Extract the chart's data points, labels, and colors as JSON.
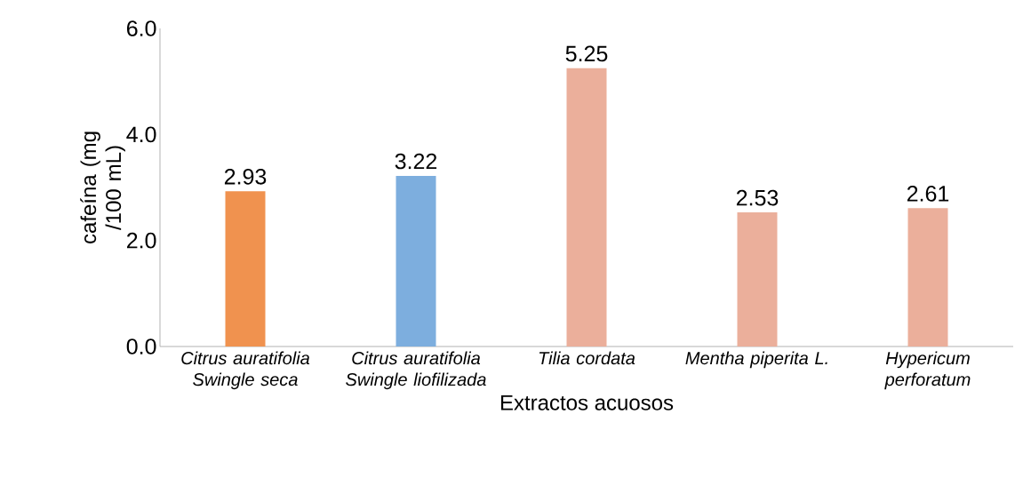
{
  "chart_data": {
    "type": "bar",
    "xlabel": "Extractos acuosos",
    "ylabel": "cafeína (mg /100 mL)",
    "categories": [
      "Citrus auratifolia Swingle seca",
      "Citrus auratifolia Swingle liofilizada",
      "Tilia cordata",
      "Mentha piperita L.",
      "Hypericum perforatum"
    ],
    "values": [
      2.93,
      3.22,
      5.25,
      2.53,
      2.61
    ],
    "colors": [
      "#f0924f",
      "#7daede",
      "#ebaf9b",
      "#ebaf9b",
      "#ebaf9b"
    ],
    "ylim": [
      0,
      6
    ],
    "yticks": [
      {
        "value": 0,
        "label": "0.0"
      },
      {
        "value": 2,
        "label": "2.0"
      },
      {
        "value": 4,
        "label": "4.0"
      },
      {
        "value": 6,
        "label": "6.0"
      }
    ],
    "data_labels": true
  }
}
